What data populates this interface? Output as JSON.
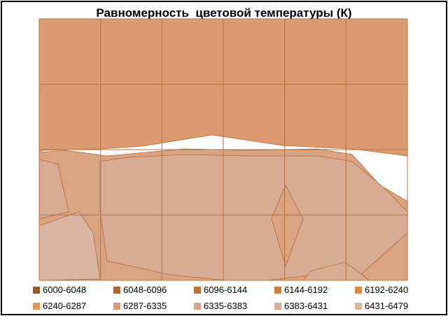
{
  "chart_data": {
    "type": "contour",
    "title": "Равномерность  цветовой температуры (К)",
    "grid": true,
    "grid_columns": 6,
    "grid_rows": 4,
    "legend_position": "bottom",
    "legend": [
      {
        "label": "6000-6048",
        "color": "#9c5a26"
      },
      {
        "label": "6048-6096",
        "color": "#b0662a"
      },
      {
        "label": "6096-6144",
        "color": "#c4722f"
      },
      {
        "label": "6144-6192",
        "color": "#d47e36"
      },
      {
        "label": "6192-6240",
        "color": "#df8a3e"
      },
      {
        "label": "6240-6287",
        "color": "#e49554"
      },
      {
        "label": "6287-6335",
        "color": "#dc9a70"
      },
      {
        "label": "6335-6383",
        "color": "#daa381"
      },
      {
        "label": "6383-6431",
        "color": "#d8ac93"
      },
      {
        "label": "6431-6479",
        "color": "#d9b6a4"
      }
    ]
  }
}
